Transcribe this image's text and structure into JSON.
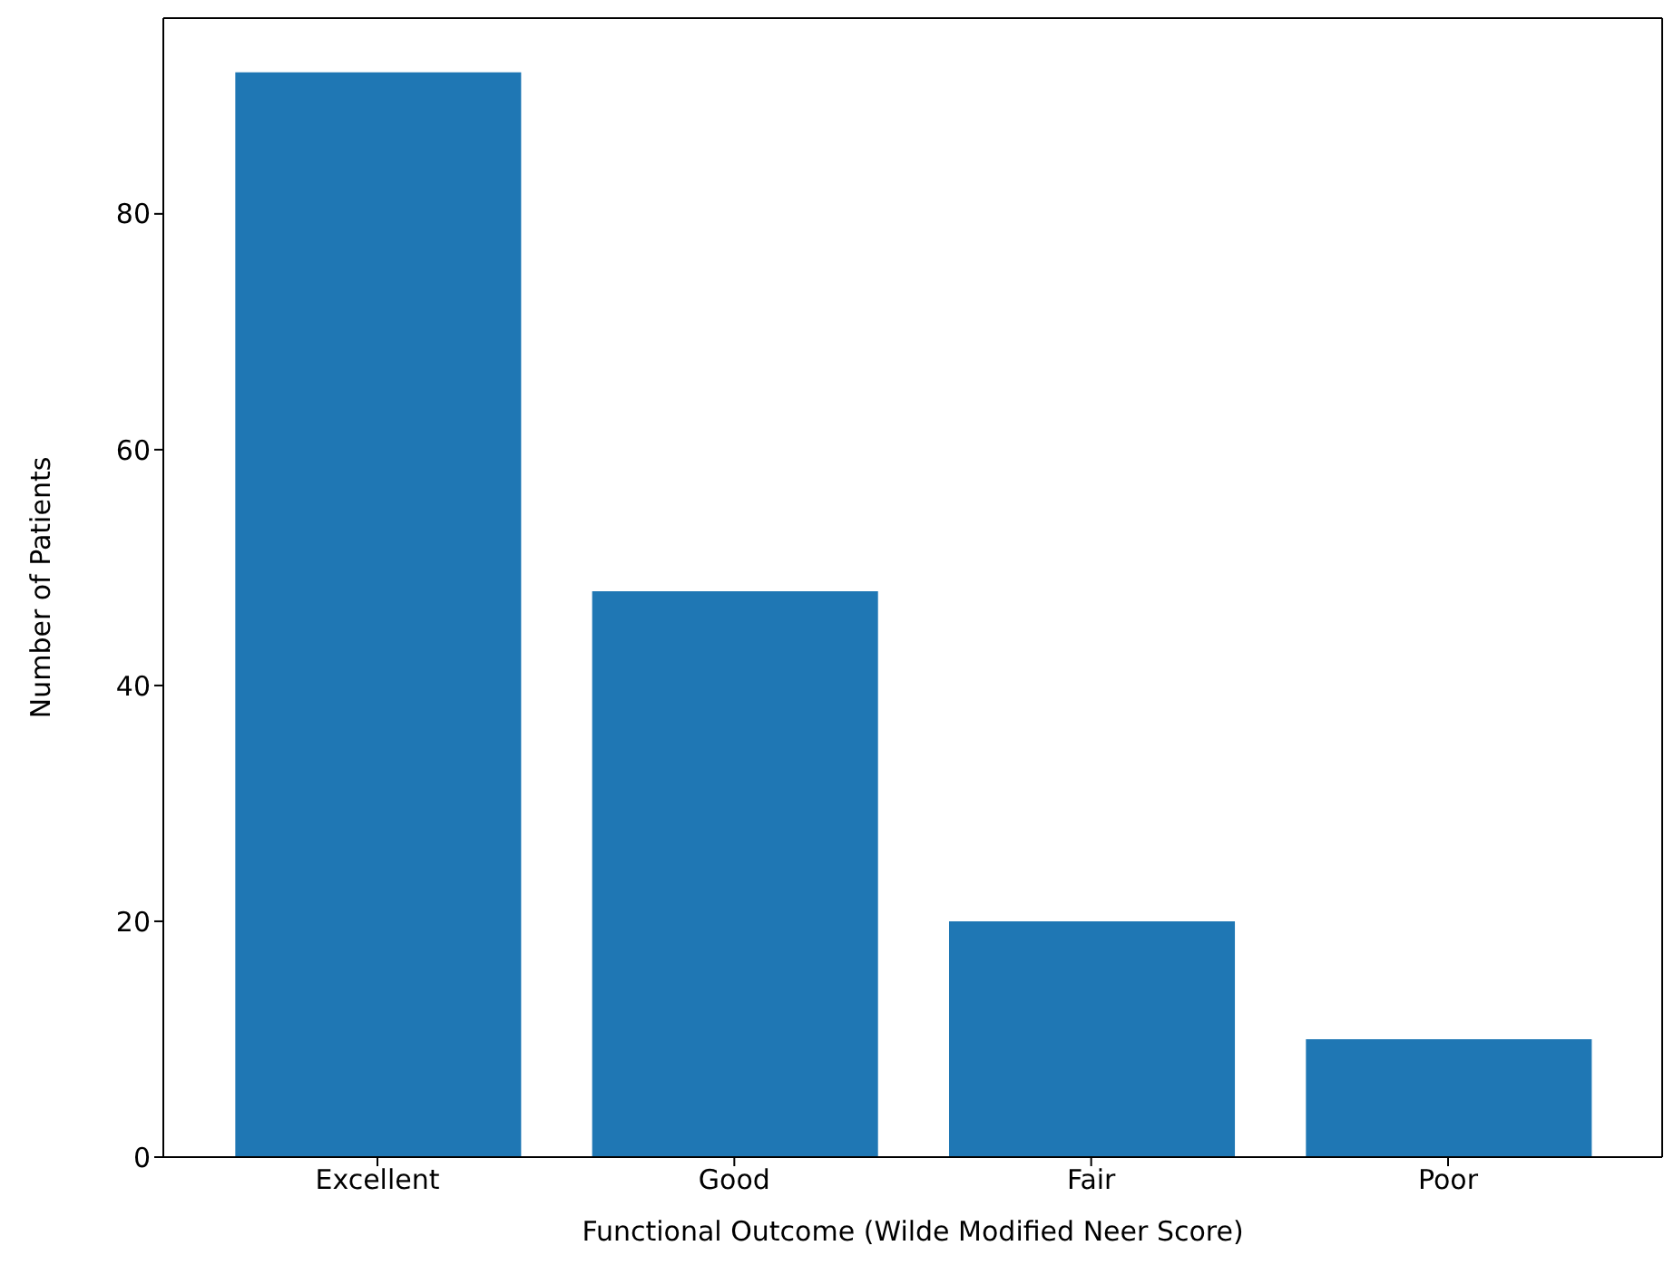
{
  "chart_data": {
    "type": "bar",
    "xlabel": "Functional Outcome (Wilde Modified Neer Score)",
    "ylabel": "Number of Patients",
    "categories": [
      "Excellent",
      "Good",
      "Fair",
      "Poor"
    ],
    "values": [
      92,
      48,
      20,
      10
    ],
    "color": "#1f77b4",
    "ylim": [
      0,
      96.6
    ],
    "yticks": [
      0,
      20,
      40,
      60,
      80
    ],
    "grid": false,
    "legend": false
  }
}
